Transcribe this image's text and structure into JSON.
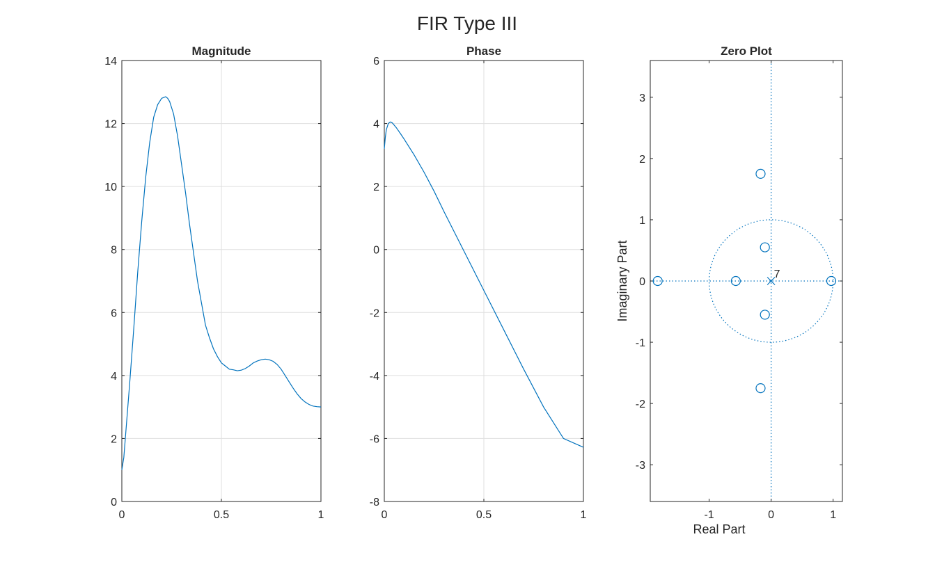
{
  "figure": {
    "title": "FIR Type III"
  },
  "chart_data": [
    {
      "type": "line",
      "title": "Magnitude",
      "xlabel": "",
      "ylabel": "",
      "xlim": [
        0,
        1
      ],
      "ylim": [
        0,
        14
      ],
      "xticks": [
        0,
        0.5,
        1
      ],
      "xtick_labels": [
        "0",
        "0.5",
        "1"
      ],
      "yticks": [
        0,
        2,
        4,
        6,
        8,
        10,
        12,
        14
      ],
      "ytick_labels": [
        "0",
        "2",
        "4",
        "6",
        "8",
        "10",
        "12",
        "14"
      ],
      "grid": true,
      "color": "#0072BD",
      "series": [
        {
          "x": [
            0,
            0.01,
            0.02,
            0.04,
            0.06,
            0.08,
            0.1,
            0.12,
            0.14,
            0.16,
            0.18,
            0.2,
            0.22,
            0.23,
            0.24,
            0.26,
            0.28,
            0.3,
            0.32,
            0.34,
            0.36,
            0.38,
            0.4,
            0.42,
            0.44,
            0.46,
            0.48,
            0.5,
            0.52,
            0.54,
            0.56,
            0.58,
            0.6,
            0.62,
            0.64,
            0.66,
            0.68,
            0.7,
            0.72,
            0.74,
            0.76,
            0.78,
            0.8,
            0.82,
            0.84,
            0.86,
            0.88,
            0.9,
            0.92,
            0.94,
            0.96,
            0.98,
            1.0
          ],
          "y": [
            1.0,
            1.4,
            2.2,
            3.8,
            5.5,
            7.3,
            8.9,
            10.3,
            11.4,
            12.2,
            12.6,
            12.8,
            12.85,
            12.8,
            12.7,
            12.3,
            11.6,
            10.7,
            9.8,
            8.8,
            7.9,
            7.0,
            6.3,
            5.6,
            5.2,
            4.85,
            4.6,
            4.4,
            4.3,
            4.2,
            4.18,
            4.15,
            4.17,
            4.22,
            4.3,
            4.4,
            4.46,
            4.5,
            4.52,
            4.5,
            4.45,
            4.35,
            4.2,
            4.0,
            3.8,
            3.6,
            3.42,
            3.27,
            3.16,
            3.08,
            3.03,
            3.01,
            3.0
          ]
        }
      ]
    },
    {
      "type": "line",
      "title": "Phase",
      "xlabel": "",
      "ylabel": "",
      "xlim": [
        0,
        1
      ],
      "ylim": [
        -8,
        6
      ],
      "xticks": [
        0,
        0.5,
        1
      ],
      "xtick_labels": [
        "0",
        "0.5",
        "1"
      ],
      "yticks": [
        -8,
        -6,
        -4,
        -2,
        0,
        2,
        4,
        6
      ],
      "ytick_labels": [
        "-8",
        "-6",
        "-4",
        "-2",
        "0",
        "2",
        "4",
        "6"
      ],
      "grid": true,
      "color": "#0072BD",
      "series": [
        {
          "x": [
            0,
            0.005,
            0.01,
            0.02,
            0.03,
            0.04,
            0.06,
            0.08,
            0.1,
            0.15,
            0.2,
            0.25,
            0.3,
            0.4,
            0.5,
            0.6,
            0.7,
            0.8,
            0.9,
            1.0
          ],
          "y": [
            3.2,
            3.55,
            3.8,
            4.0,
            4.05,
            4.02,
            3.87,
            3.69,
            3.5,
            3.0,
            2.45,
            1.85,
            1.2,
            -0.05,
            -1.3,
            -2.55,
            -3.8,
            -5.0,
            -6.0,
            -6.28
          ]
        }
      ]
    },
    {
      "type": "scatter",
      "title": "Zero Plot",
      "xlabel": "Real Part",
      "ylabel": "Imaginary Part",
      "xlim": [
        -1.95,
        1.15
      ],
      "ylim": [
        -3.6,
        3.6
      ],
      "xticks": [
        -1,
        0,
        1
      ],
      "xtick_labels": [
        "-1",
        "0",
        "1"
      ],
      "yticks": [
        -3,
        -2,
        -1,
        0,
        1,
        2,
        3
      ],
      "ytick_labels": [
        "-3",
        "-2",
        "-1",
        "0",
        "1",
        "2",
        "3"
      ],
      "grid": false,
      "color": "#0072BD",
      "unit_circle": true,
      "zeros": [
        {
          "x": -1.83,
          "y": 0
        },
        {
          "x": -0.57,
          "y": 0
        },
        {
          "x": 0.97,
          "y": 0
        },
        {
          "x": -0.1,
          "y": 0.55
        },
        {
          "x": -0.1,
          "y": -0.55
        },
        {
          "x": -0.17,
          "y": 1.75
        },
        {
          "x": -0.17,
          "y": -1.75
        }
      ],
      "poles": [
        {
          "x": 0,
          "y": 0,
          "multiplicity": "7"
        }
      ]
    }
  ]
}
